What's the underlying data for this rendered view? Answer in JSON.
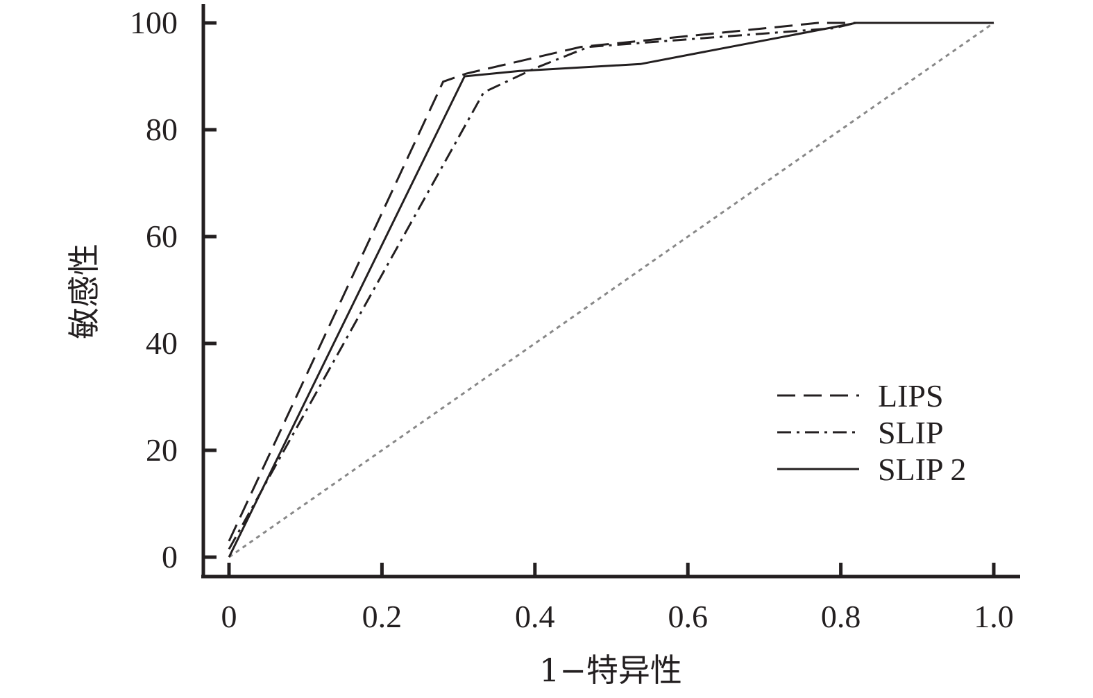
{
  "chart_data": {
    "type": "line",
    "xlabel": "1−特异性",
    "ylabel": "敏感性",
    "xlim": [
      0,
      1.0
    ],
    "ylim": [
      0,
      100
    ],
    "x_ticks": [
      {
        "value": 0,
        "label": "0"
      },
      {
        "value": 0.2,
        "label": "0.2"
      },
      {
        "value": 0.4,
        "label": "0.4"
      },
      {
        "value": 0.6,
        "label": "0.6"
      },
      {
        "value": 0.8,
        "label": "0.8"
      },
      {
        "value": 1.0,
        "label": "1.0"
      }
    ],
    "y_ticks": [
      {
        "value": 0,
        "label": "0"
      },
      {
        "value": 20,
        "label": "20"
      },
      {
        "value": 40,
        "label": "40"
      },
      {
        "value": 60,
        "label": "60"
      },
      {
        "value": 80,
        "label": "80"
      },
      {
        "value": 100,
        "label": "100"
      }
    ],
    "grid": false,
    "legend_position": "bottom-right",
    "series": [
      {
        "name": "LIPS",
        "dash": "long-dash",
        "x": [
          0,
          0.28,
          0.31,
          0.46,
          0.77,
          0.82,
          1.0
        ],
        "y": [
          3,
          89,
          90.5,
          95.5,
          100,
          100,
          100
        ]
      },
      {
        "name": "SLIP",
        "dash": "dash-dot",
        "x": [
          0,
          0.333,
          0.4,
          0.47,
          0.79,
          0.82,
          1.0
        ],
        "y": [
          1.5,
          87,
          91.5,
          95.5,
          99,
          100,
          100
        ]
      },
      {
        "name": "SLIP 2",
        "dash": "solid",
        "x": [
          0,
          0.308,
          0.38,
          0.538,
          0.82,
          1.0
        ],
        "y": [
          0,
          90,
          91,
          92.3,
          100,
          100
        ]
      }
    ],
    "reference_line": {
      "x": [
        0,
        1.0
      ],
      "y": [
        0,
        100
      ],
      "color": "#888888",
      "dash": "dotted"
    }
  }
}
